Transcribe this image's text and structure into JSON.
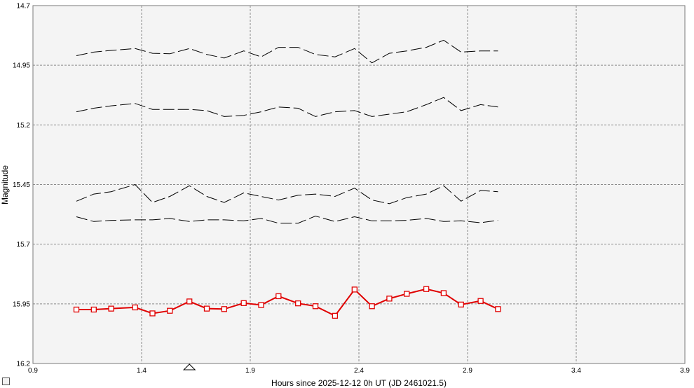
{
  "chart_data": {
    "type": "line",
    "title": "",
    "xlabel": "Hours since 2025-12-12 0h UT (JD 2461021.5)",
    "ylabel": "Magnitude",
    "xlim": [
      0.9,
      3.9
    ],
    "ylim": [
      14.7,
      16.2
    ],
    "y_inverted": true,
    "grid": true,
    "x_ticks": [
      "0.9",
      "1.4",
      "1.9",
      "2.4",
      "2.9",
      "3.4",
      "3.9"
    ],
    "y_ticks": [
      "14.7",
      "14.95",
      "15.2",
      "15.45",
      "15.7",
      "15.95",
      "16.2"
    ],
    "colors": {
      "plot_bg": "#f4f4f4",
      "grid": "#8a8a8a",
      "comparison": "#000000",
      "target": "#e00000"
    },
    "x": [
      1.1,
      1.18,
      1.26,
      1.37,
      1.45,
      1.53,
      1.62,
      1.7,
      1.78,
      1.87,
      1.95,
      2.03,
      2.12,
      2.2,
      2.29,
      2.38,
      2.46,
      2.54,
      2.62,
      2.71,
      2.79,
      2.87,
      2.96,
      3.04
    ],
    "series": [
      {
        "style": "dashed",
        "color": "#000000",
        "values": [
          14.91,
          14.895,
          14.888,
          14.88,
          14.9,
          14.902,
          14.88,
          14.905,
          14.92,
          14.89,
          14.915,
          14.875,
          14.875,
          14.905,
          14.915,
          14.88,
          14.94,
          14.9,
          14.89,
          14.875,
          14.845,
          14.895,
          14.89,
          14.89
        ]
      },
      {
        "style": "dashed",
        "color": "#000000",
        "values": [
          15.145,
          15.13,
          15.12,
          15.11,
          15.135,
          15.135,
          15.135,
          15.14,
          15.165,
          15.16,
          15.145,
          15.125,
          15.13,
          15.165,
          15.145,
          15.14,
          15.165,
          15.155,
          15.145,
          15.115,
          15.085,
          15.14,
          15.115,
          15.125
        ]
      },
      {
        "style": "dashed",
        "color": "#000000",
        "values": [
          15.52,
          15.49,
          15.48,
          15.45,
          15.525,
          15.5,
          15.455,
          15.5,
          15.525,
          15.485,
          15.5,
          15.515,
          15.495,
          15.49,
          15.5,
          15.465,
          15.515,
          15.53,
          15.505,
          15.49,
          15.455,
          15.52,
          15.475,
          15.48
        ]
      },
      {
        "style": "dashed",
        "color": "#000000",
        "values": [
          15.585,
          15.605,
          15.6,
          15.598,
          15.598,
          15.592,
          15.605,
          15.598,
          15.598,
          15.602,
          15.592,
          15.612,
          15.612,
          15.582,
          15.605,
          15.585,
          15.602,
          15.602,
          15.6,
          15.592,
          15.605,
          15.602,
          15.61,
          15.6
        ]
      },
      {
        "style": "solid",
        "color": "#e00000",
        "marker": "square",
        "values": [
          15.974,
          15.974,
          15.97,
          15.965,
          15.99,
          15.979,
          15.94,
          15.97,
          15.972,
          15.947,
          15.955,
          15.918,
          15.948,
          15.96,
          16.0,
          15.89,
          15.96,
          15.928,
          15.908,
          15.888,
          15.905,
          15.953,
          15.938,
          15.972
        ]
      }
    ],
    "x_marker": 1.62
  }
}
